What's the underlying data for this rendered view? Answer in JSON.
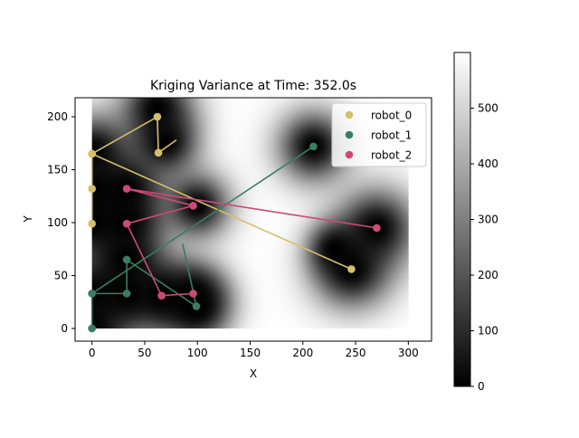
{
  "chart_data": {
    "type": "scatter",
    "title": "Kriging Variance at Time: 352.0s",
    "xlabel": "X",
    "ylabel": "Y",
    "xlim": [
      -16,
      322
    ],
    "ylim": [
      -12,
      218
    ],
    "xticks": [
      0,
      50,
      100,
      150,
      200,
      250,
      300
    ],
    "yticks": [
      0,
      50,
      100,
      150,
      200
    ],
    "heatmap": {
      "extent": [
        0,
        300,
        0,
        218
      ],
      "colormap": "gray",
      "vmin": 0,
      "vmax": 600,
      "peak_value": 600,
      "low_variance_centers": [
        {
          "x": 2,
          "y": 168,
          "r": 42
        },
        {
          "x": 62,
          "y": 208,
          "r": 42
        },
        {
          "x": 70,
          "y": 176,
          "r": 38
        },
        {
          "x": 0,
          "y": 132,
          "r": 38
        },
        {
          "x": 0,
          "y": 100,
          "r": 40
        },
        {
          "x": 33,
          "y": 132,
          "r": 42
        },
        {
          "x": 33,
          "y": 100,
          "r": 42
        },
        {
          "x": 33,
          "y": 66,
          "r": 40
        },
        {
          "x": 33,
          "y": 33,
          "r": 42
        },
        {
          "x": 0,
          "y": 33,
          "r": 42
        },
        {
          "x": 0,
          "y": 0,
          "r": 42
        },
        {
          "x": 66,
          "y": 31,
          "r": 40
        },
        {
          "x": 96,
          "y": 31,
          "r": 38
        },
        {
          "x": 99,
          "y": 20,
          "r": 38
        },
        {
          "x": 100,
          "y": 116,
          "r": 38
        },
        {
          "x": 210,
          "y": 172,
          "r": 42
        },
        {
          "x": 270,
          "y": 95,
          "r": 46
        },
        {
          "x": 246,
          "y": 56,
          "r": 46
        },
        {
          "x": 230,
          "y": 75,
          "r": 30
        }
      ]
    },
    "series": [
      {
        "name": "robot_0",
        "color": "#d6bf6b",
        "points": [
          [
            246,
            56
          ],
          [
            0,
            165
          ],
          [
            0,
            132
          ],
          [
            0,
            99
          ],
          [
            0,
            165
          ],
          [
            62,
            200
          ],
          [
            63,
            166
          ]
        ],
        "tail": [
          [
            63,
            166
          ],
          [
            80,
            178
          ]
        ]
      },
      {
        "name": "robot_1",
        "color": "#3a7d62",
        "points": [
          [
            210,
            172
          ],
          [
            0,
            33
          ],
          [
            0,
            0
          ],
          [
            0,
            33
          ],
          [
            33,
            33
          ],
          [
            33,
            65
          ],
          [
            99,
            21
          ]
        ],
        "tail": [
          [
            99,
            21
          ],
          [
            86,
            80
          ]
        ]
      },
      {
        "name": "robot_2",
        "color": "#cc4a78",
        "points": [
          [
            270,
            95
          ],
          [
            33,
            132
          ],
          [
            96,
            116
          ],
          [
            33,
            99
          ],
          [
            66,
            31
          ],
          [
            96,
            33
          ]
        ],
        "tail": []
      }
    ],
    "colorbar": {
      "ticks": [
        0,
        100,
        200,
        300,
        400,
        500
      ],
      "range": [
        0,
        600
      ]
    },
    "legend_position": "top-right"
  }
}
